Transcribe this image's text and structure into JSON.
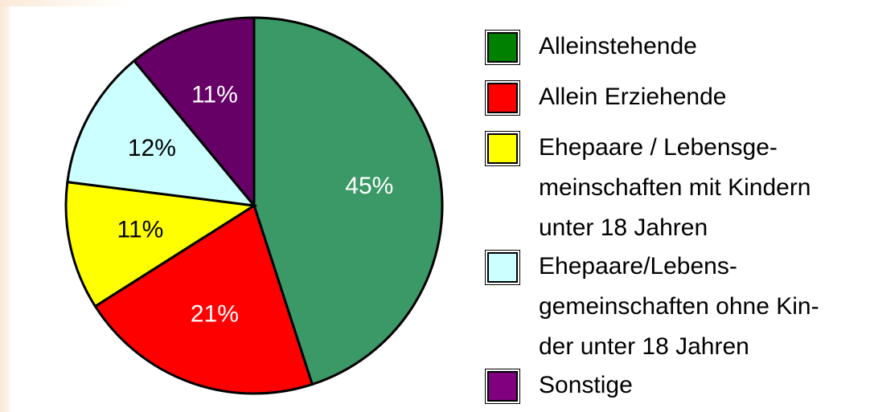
{
  "chart_data": {
    "type": "pie",
    "categories": [
      "Alleinstehende",
      "Allein Erziehende",
      "Ehepaare / Lebensge-\nmeinschaften mit Kindern\nunter 18 Jahren",
      "Ehepaare/Lebens-\ngemeinschaften ohne Kin-\nder unter 18 Jahren",
      "Sonstige"
    ],
    "values": [
      45,
      21,
      11,
      12,
      11
    ],
    "value_labels": [
      "45%",
      "21%",
      "11%",
      "12%",
      "11%"
    ],
    "colors": [
      "#3a9966",
      "#ff0000",
      "#ffff00",
      "#ccffff",
      "#660066"
    ],
    "legend_colors": [
      "#008000",
      "#ff0000",
      "#ffff00",
      "#ccffff",
      "#800080"
    ]
  }
}
